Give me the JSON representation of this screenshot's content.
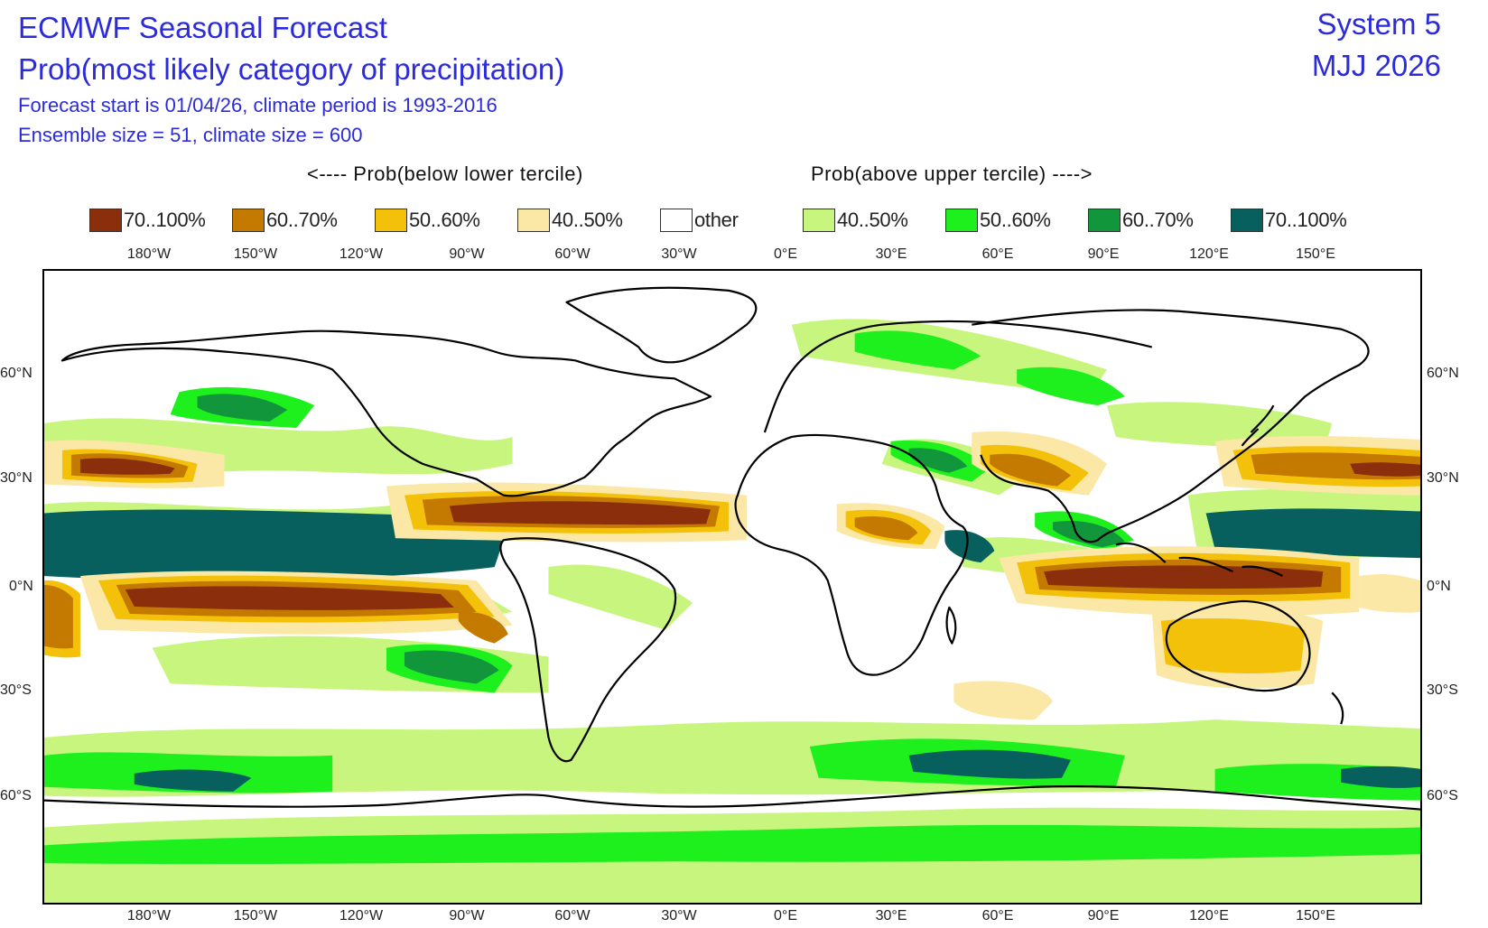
{
  "header": {
    "title": "ECMWF Seasonal Forecast",
    "subtitle": "Prob(most likely category of precipitation)",
    "info_line1": "Forecast start is 01/04/26, climate period is 1993-2016",
    "info_line2": "Ensemble size = 51, climate size = 600",
    "system": "System 5",
    "period": "MJJ 2026"
  },
  "legend": {
    "below_heading": "<---- Prob(below lower tercile)",
    "above_heading": "Prob(above upper tercile) ---->",
    "items": [
      {
        "label": "70..100%",
        "color": "#8B2E0B"
      },
      {
        "label": "60..70%",
        "color": "#C47A00"
      },
      {
        "label": "50..60%",
        "color": "#F4C10A"
      },
      {
        "label": "40..50%",
        "color": "#FBE7A6"
      },
      {
        "label": "other",
        "color": "#FFFFFF"
      },
      {
        "label": "40..50%",
        "color": "#C8F57E"
      },
      {
        "label": "50..60%",
        "color": "#1EF01E"
      },
      {
        "label": "60..70%",
        "color": "#11963B"
      },
      {
        "label": "70..100%",
        "color": "#07605E"
      }
    ]
  },
  "axes": {
    "lon_labels": [
      "180°W",
      "150°W",
      "120°W",
      "90°W",
      "60°W",
      "30°W",
      "0°E",
      "30°E",
      "60°E",
      "90°E",
      "120°E",
      "150°E"
    ],
    "lat_labels": [
      "60°N",
      "30°N",
      "0°N",
      "30°S",
      "60°S"
    ]
  },
  "colors": {
    "title_blue": "#2B2BDC",
    "coastline": "#000000"
  }
}
